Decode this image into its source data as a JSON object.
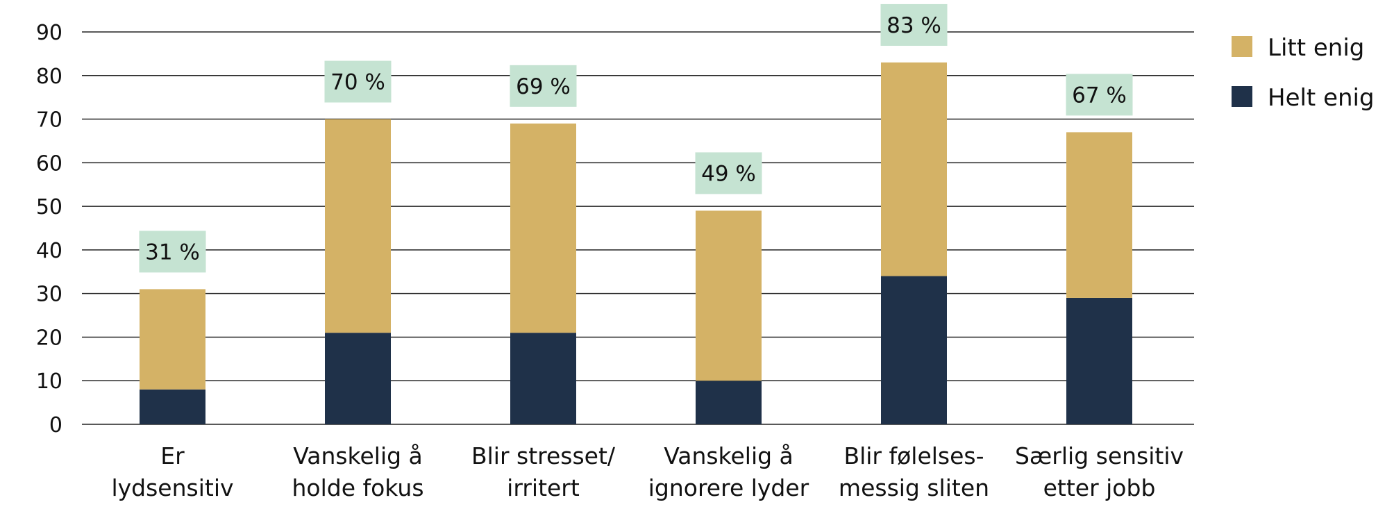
{
  "chart_data": {
    "type": "bar",
    "stacked": true,
    "categories": [
      [
        "Er",
        "lydsensitiv"
      ],
      [
        "Vanskelig å",
        "holde fokus"
      ],
      [
        "Blir stresset/",
        "irritert"
      ],
      [
        "Vanskelig å",
        "ignorere lyder"
      ],
      [
        "Blir følelses-",
        "messig sliten"
      ],
      [
        "Særlig sensitiv",
        "etter jobb"
      ]
    ],
    "series": [
      {
        "name": "Helt enig",
        "color": "#1f3149",
        "values": [
          8,
          21,
          21,
          10,
          34,
          29
        ]
      },
      {
        "name": "Litt enig",
        "color": "#d4b266",
        "values": [
          23,
          49,
          48,
          39,
          49,
          38
        ]
      }
    ],
    "totals": [
      31,
      70,
      69,
      49,
      83,
      67
    ],
    "total_labels": [
      "31 %",
      "70 %",
      "69 %",
      "49 %",
      "83 %",
      "67 %"
    ],
    "total_label_bg": "#c5e3d2",
    "legend_order": [
      "Litt enig",
      "Helt enig"
    ],
    "legend_position": "right",
    "yticks": [
      0,
      10,
      20,
      30,
      40,
      50,
      60,
      70,
      80,
      90
    ],
    "ylim": [
      0,
      90
    ],
    "grid": true,
    "title": "",
    "xlabel": "",
    "ylabel": ""
  }
}
